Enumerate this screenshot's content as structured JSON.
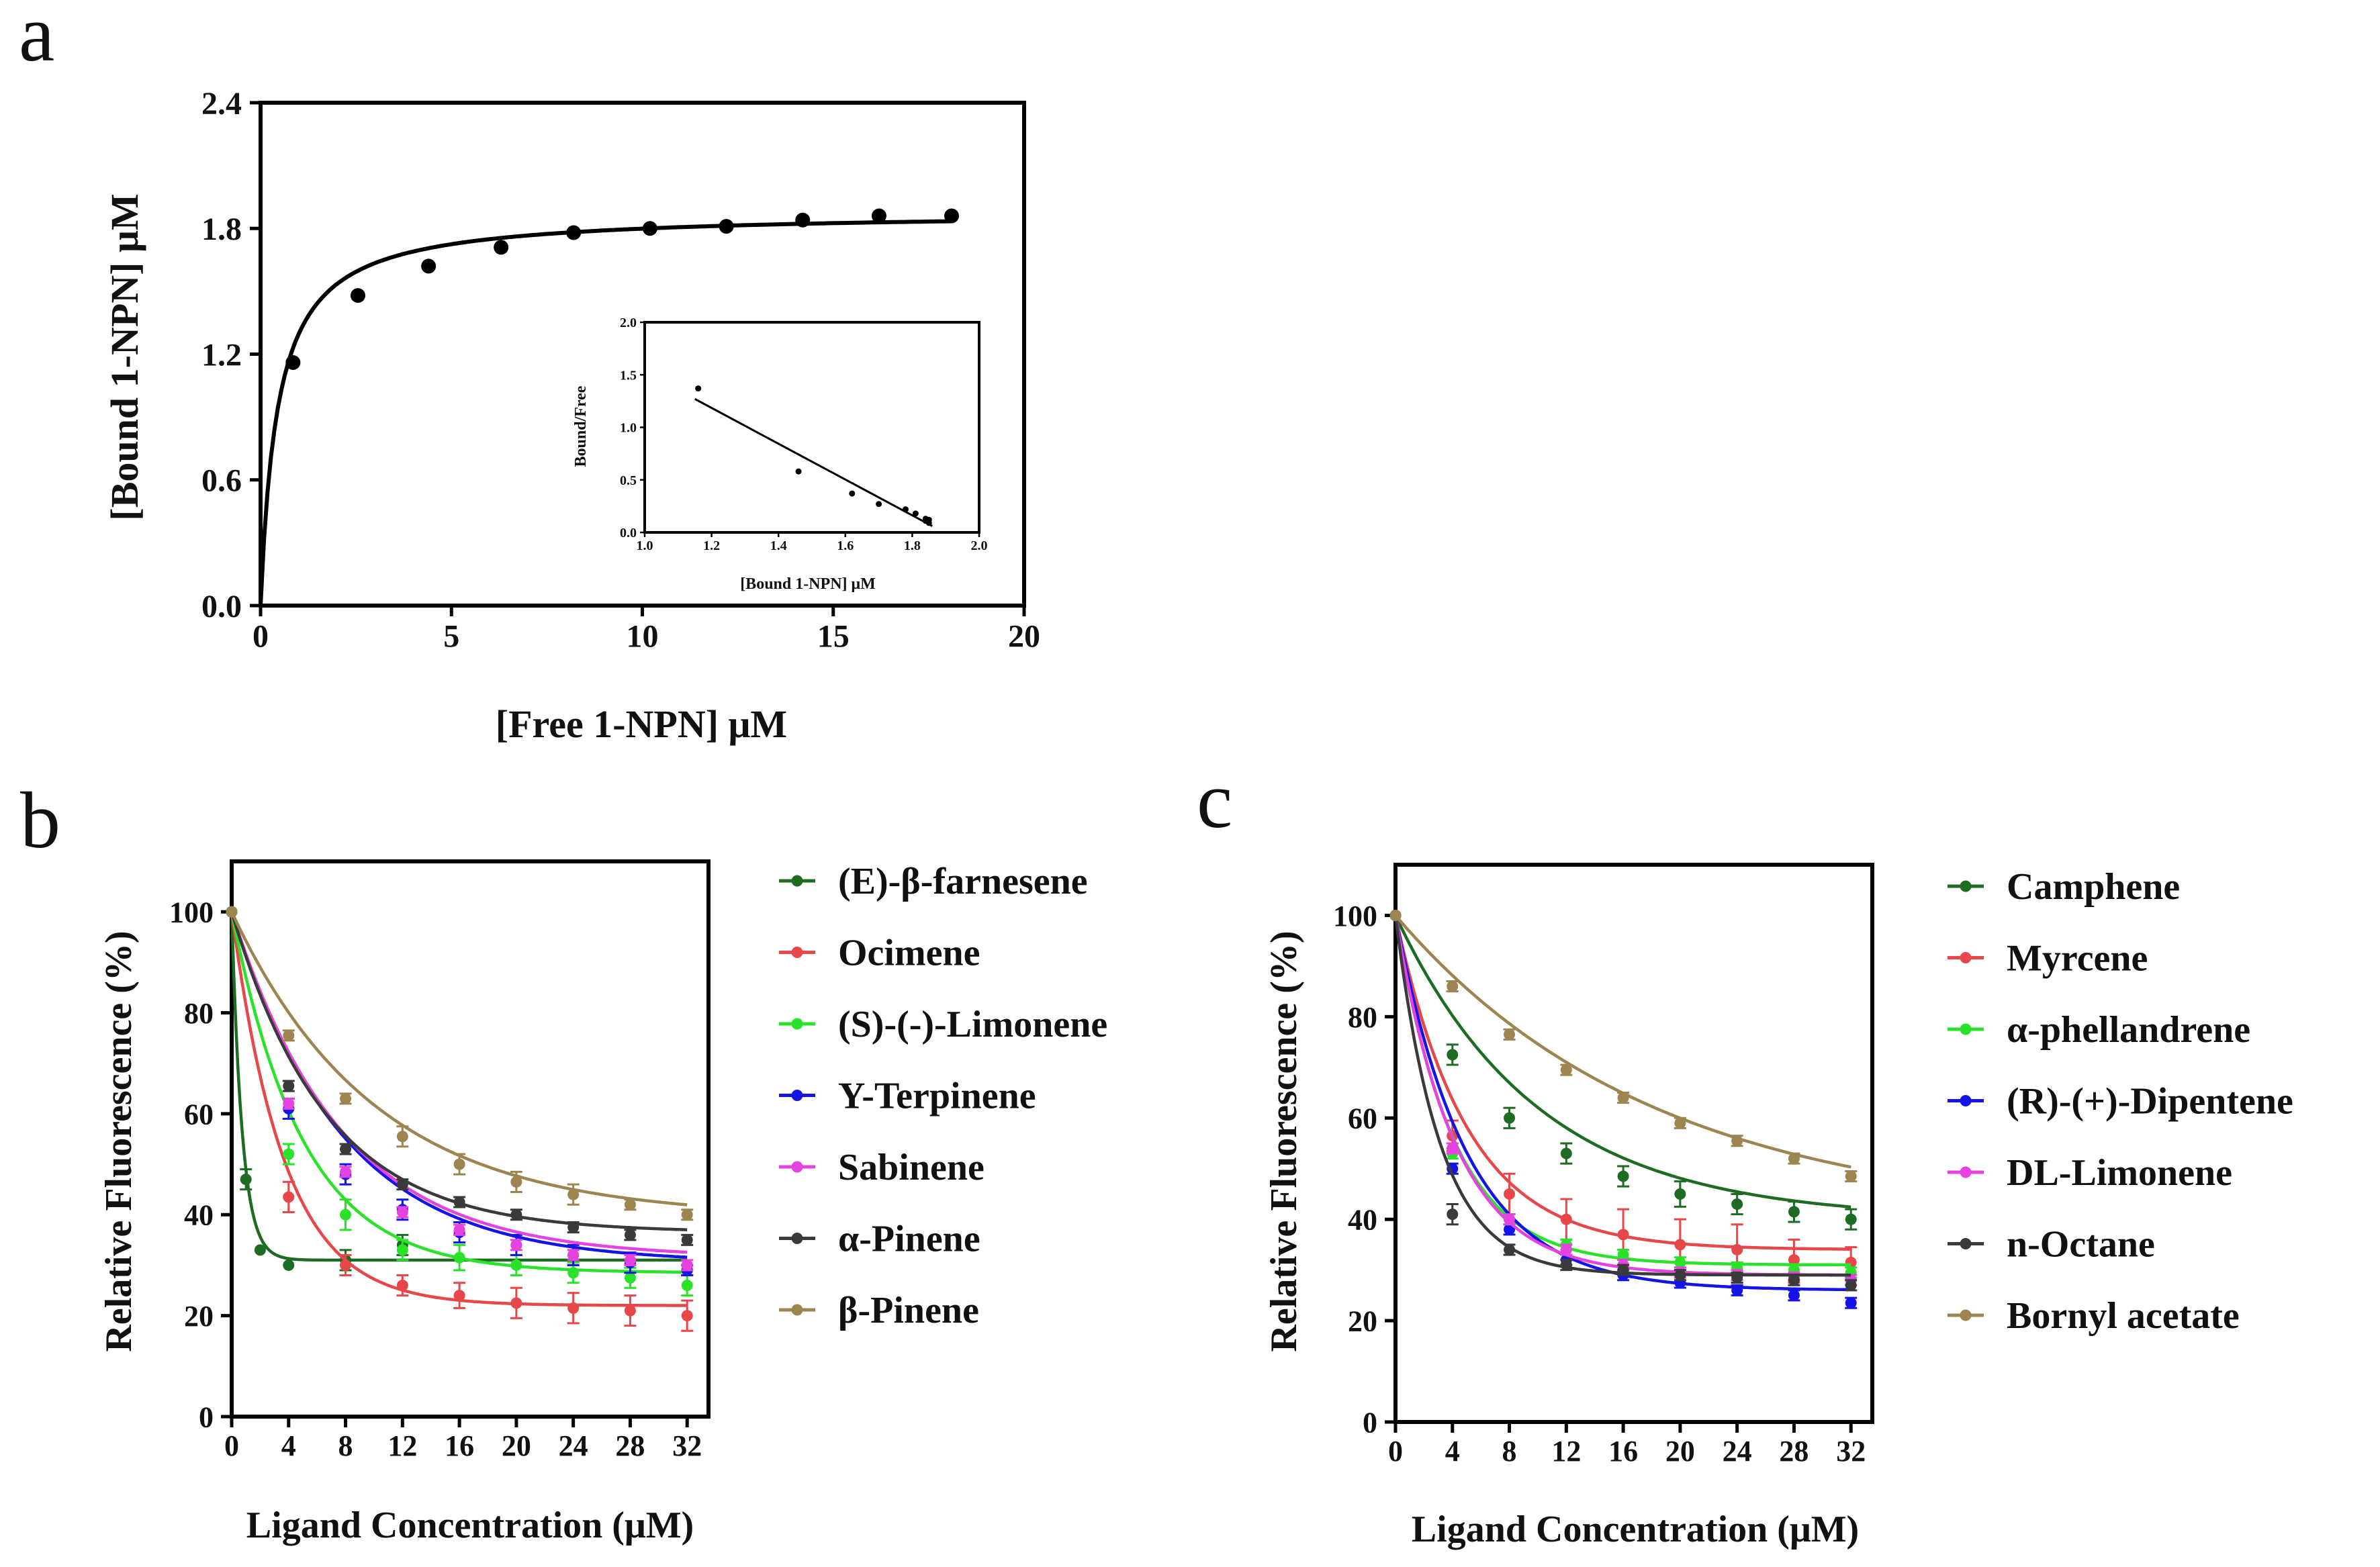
{
  "panels": {
    "a": {
      "label": "a",
      "chart_data": {
        "type": "scatter",
        "xlabel": "[Free 1-NPN] μM",
        "ylabel": "[Bound 1-NPN] μM",
        "xlim": [
          0,
          20
        ],
        "ylim": [
          0.0,
          2.4
        ],
        "xticks": [
          "0",
          "5",
          "10",
          "15",
          "20"
        ],
        "yticks": [
          "0.0",
          "0.6",
          "1.2",
          "1.8",
          "2.4"
        ],
        "points": {
          "x": [
            0.85,
            2.55,
            4.4,
            6.3,
            8.2,
            10.2,
            12.2,
            14.2,
            16.2,
            18.1
          ],
          "y": [
            1.16,
            1.48,
            1.62,
            1.71,
            1.78,
            1.8,
            1.81,
            1.84,
            1.86,
            1.86
          ]
        },
        "fit": {
          "type": "hyperbola",
          "bmax": 1.88,
          "kd": 0.45
        },
        "inset": {
          "type": "scatter",
          "xlabel": "[Bound 1-NPN] μM",
          "ylabel": "Bound/Free",
          "xlim": [
            1.0,
            2.0
          ],
          "ylim": [
            0.0,
            2.0
          ],
          "xticks": [
            "1.0",
            "1.2",
            "1.4",
            "1.6",
            "1.8",
            "2.0"
          ],
          "yticks": [
            "0.0",
            "0.5",
            "1.0",
            "1.5",
            "2.0"
          ],
          "points": {
            "x": [
              1.16,
              1.46,
              1.62,
              1.7,
              1.78,
              1.81,
              1.84,
              1.84,
              1.85,
              1.85
            ],
            "y": [
              1.37,
              0.58,
              0.37,
              0.27,
              0.22,
              0.18,
              0.13,
              0.11,
              0.09,
              0.12
            ]
          },
          "fit_line": {
            "x": [
              1.15,
              1.86
            ],
            "y": [
              1.27,
              0.06
            ]
          }
        }
      }
    },
    "b": {
      "label": "b",
      "chart_data": {
        "type": "line",
        "xlabel": "Ligand Concentration (μM)",
        "ylabel": "Relative Fluorescence (%)",
        "xlim": [
          0,
          33.5
        ],
        "ylim": [
          0,
          110
        ],
        "xticks": [
          "0",
          "4",
          "8",
          "12",
          "16",
          "20",
          "24",
          "28",
          "32"
        ],
        "yticks": [
          "0",
          "20",
          "40",
          "60",
          "80",
          "100"
        ],
        "x": [
          0,
          1,
          2,
          4,
          8,
          12,
          16,
          20,
          24,
          28,
          32
        ],
        "series": [
          {
            "name": "(E)-β-farnesene",
            "color": "#1e6b24",
            "plateau": 31,
            "k": 1.35,
            "x": [
              0,
              1,
              2,
              4,
              8,
              12
            ],
            "y": [
              100,
              47,
              33,
              30,
              31,
              34
            ],
            "err": [
              0,
              2,
              0,
              0,
              2,
              2
            ]
          },
          {
            "name": "Ocimene",
            "color": "#e8474a",
            "plateau": 22,
            "k": 0.27,
            "x": [
              0,
              4,
              8,
              12,
              16,
              20,
              24,
              28,
              32
            ],
            "y": [
              100,
              43.5,
              30,
              26,
              24,
              22.5,
              21.5,
              21,
              20
            ],
            "err": [
              0,
              3,
              2,
              2,
              2.5,
              3,
              3,
              3,
              3
            ]
          },
          {
            "name": "(S)-(-)-Limonene",
            "color": "#29e229",
            "plateau": 28.5,
            "k": 0.2,
            "x": [
              0,
              4,
              8,
              12,
              16,
              20,
              24,
              28,
              32
            ],
            "y": [
              100,
              52,
              40,
              33,
              31.5,
              30,
              28.5,
              27.5,
              26
            ],
            "err": [
              0,
              2,
              3,
              2,
              2.5,
              2,
              2,
              2,
              2
            ]
          },
          {
            "name": "Y-Terpinene",
            "color": "#1414e6",
            "plateau": 30.5,
            "k": 0.13,
            "x": [
              0,
              4,
              8,
              12,
              16,
              20,
              24,
              28,
              32
            ],
            "y": [
              100,
              61,
              48,
              41,
              36.5,
              34,
              32,
              30.5,
              29
            ],
            "err": [
              0,
              2,
              2,
              2,
              2,
              2,
              2,
              2,
              1
            ]
          },
          {
            "name": "Sabinene",
            "color": "#e642e0",
            "plateau": 31.5,
            "k": 0.13,
            "x": [
              0,
              4,
              8,
              12,
              16,
              20,
              24,
              28,
              32
            ],
            "y": [
              100,
              62,
              48.5,
              40.5,
              37,
              34,
              32,
              31,
              30
            ],
            "err": [
              0,
              1,
              1,
              1,
              1,
              1,
              1,
              1,
              1
            ]
          },
          {
            "name": "α-Pinene",
            "color": "#3a3a3a",
            "plateau": 36.5,
            "k": 0.15,
            "x": [
              0,
              4,
              8,
              12,
              16,
              20,
              24,
              28,
              32
            ],
            "y": [
              100,
              65.5,
              53,
              46,
              42.5,
              40,
              37.5,
              36,
              35
            ],
            "err": [
              0,
              1,
              1,
              1,
              1,
              1,
              1,
              1,
              1
            ]
          },
          {
            "name": "β-Pinene",
            "color": "#9c8550",
            "plateau": 39.5,
            "k": 0.1,
            "x": [
              0,
              4,
              8,
              12,
              16,
              20,
              24,
              28,
              32
            ],
            "y": [
              100,
              75.5,
              63,
              55.5,
              50,
              46.5,
              44,
              42,
              40
            ],
            "err": [
              0,
              1,
              1,
              2,
              2,
              2,
              2,
              1,
              1
            ]
          }
        ]
      }
    },
    "c": {
      "label": "c",
      "chart_data": {
        "type": "line",
        "xlabel": "Ligand Concentration (μM)",
        "ylabel": "Relative Fluorescence (%)",
        "xlim": [
          0,
          33.5
        ],
        "ylim": [
          0,
          110
        ],
        "xticks": [
          "0",
          "4",
          "8",
          "12",
          "16",
          "20",
          "24",
          "28",
          "32"
        ],
        "yticks": [
          "0",
          "20",
          "40",
          "60",
          "80",
          "100"
        ],
        "x": [
          0,
          4,
          8,
          12,
          16,
          20,
          24,
          28,
          32
        ],
        "series": [
          {
            "name": "Camphene",
            "color": "#1e6b24",
            "plateau": 40,
            "k": 0.1,
            "x": [
              0,
              4,
              8,
              12,
              16,
              20,
              24,
              28,
              32
            ],
            "y": [
              100,
              72.5,
              60,
              53,
              48.5,
              45,
              43,
              41.5,
              40
            ],
            "err": [
              0,
              2,
              2,
              2,
              2,
              2.5,
              2,
              2,
              2
            ]
          },
          {
            "name": "Myrcene",
            "color": "#e8474a",
            "plateau": 34,
            "k": 0.2,
            "x": [
              0,
              4,
              8,
              12,
              16,
              20,
              24,
              28,
              32
            ],
            "y": [
              100,
              56.5,
              45,
              40,
              37,
              35,
              34,
              32,
              31.5
            ],
            "err": [
              0,
              3,
              4,
              4,
              5,
              5,
              5,
              4,
              3
            ]
          },
          {
            "name": "α-phellandrene",
            "color": "#29e229",
            "plateau": 31,
            "k": 0.25,
            "x": [
              0,
              4,
              8,
              12,
              16,
              20,
              24,
              28,
              32
            ],
            "y": [
              100,
              53,
              40,
              35,
              33,
              31.5,
              30.5,
              30,
              29.5
            ],
            "err": [
              0,
              1,
              1,
              1,
              1,
              1,
              1,
              1,
              1
            ]
          },
          {
            "name": "(R)-(+)-Dipentene",
            "color": "#1414e6",
            "plateau": 26,
            "k": 0.2,
            "x": [
              0,
              4,
              8,
              12,
              16,
              20,
              24,
              28,
              32
            ],
            "y": [
              100,
              50,
              38,
              32,
              29,
              27.5,
              26,
              25,
              23.5
            ],
            "err": [
              0,
              1,
              1,
              1,
              1,
              1,
              1,
              1,
              1
            ]
          },
          {
            "name": "DL-Limonene",
            "color": "#e642e0",
            "plateau": 29,
            "k": 0.24,
            "x": [
              0,
              4,
              8,
              12,
              16,
              20,
              24,
              28,
              32
            ],
            "y": [
              100,
              54,
              40,
              34,
              31,
              29.5,
              29,
              28.5,
              28
            ],
            "err": [
              0,
              1,
              1,
              1,
              1,
              1,
              1,
              1,
              1
            ]
          },
          {
            "name": "n-Octane",
            "color": "#3a3a3a",
            "plateau": 29,
            "k": 0.32,
            "x": [
              0,
              4,
              8,
              12,
              16,
              20,
              24,
              28,
              32
            ],
            "y": [
              100,
              41,
              34,
              31,
              30,
              29,
              28.5,
              28,
              27
            ],
            "err": [
              0,
              2,
              1,
              1,
              1,
              1,
              1,
              1,
              1
            ]
          },
          {
            "name": "Bornyl acetate",
            "color": "#9c8550",
            "plateau": 40,
            "k": 0.055,
            "x": [
              0,
              4,
              8,
              12,
              16,
              20,
              24,
              28,
              32
            ],
            "y": [
              100,
              86,
              76.5,
              69.5,
              64,
              59,
              55.5,
              52,
              48.5
            ],
            "err": [
              0,
              1,
              1,
              1,
              1,
              1,
              1,
              1,
              1
            ]
          }
        ]
      }
    }
  }
}
